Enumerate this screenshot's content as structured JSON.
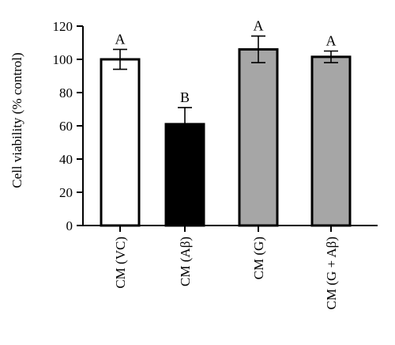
{
  "chart_data": {
    "type": "bar",
    "categories": [
      "CM (VC)",
      "CM (Aβ)",
      "CM (G)",
      "CM (G + Aβ)"
    ],
    "values": [
      100,
      61,
      106,
      101.5
    ],
    "errors": [
      6,
      10,
      8,
      3.5
    ],
    "significance_letters": [
      "A",
      "B",
      "A",
      "A"
    ],
    "bar_colors": [
      "#ffffff",
      "#000000",
      "#a6a6a6",
      "#a6a6a6"
    ],
    "ylabel": "Cell viability (% control)",
    "xlabel": "",
    "ylim": [
      0,
      120
    ],
    "yticks": [
      0,
      20,
      40,
      60,
      80,
      100,
      120
    ],
    "grid": false,
    "legend": "none"
  }
}
